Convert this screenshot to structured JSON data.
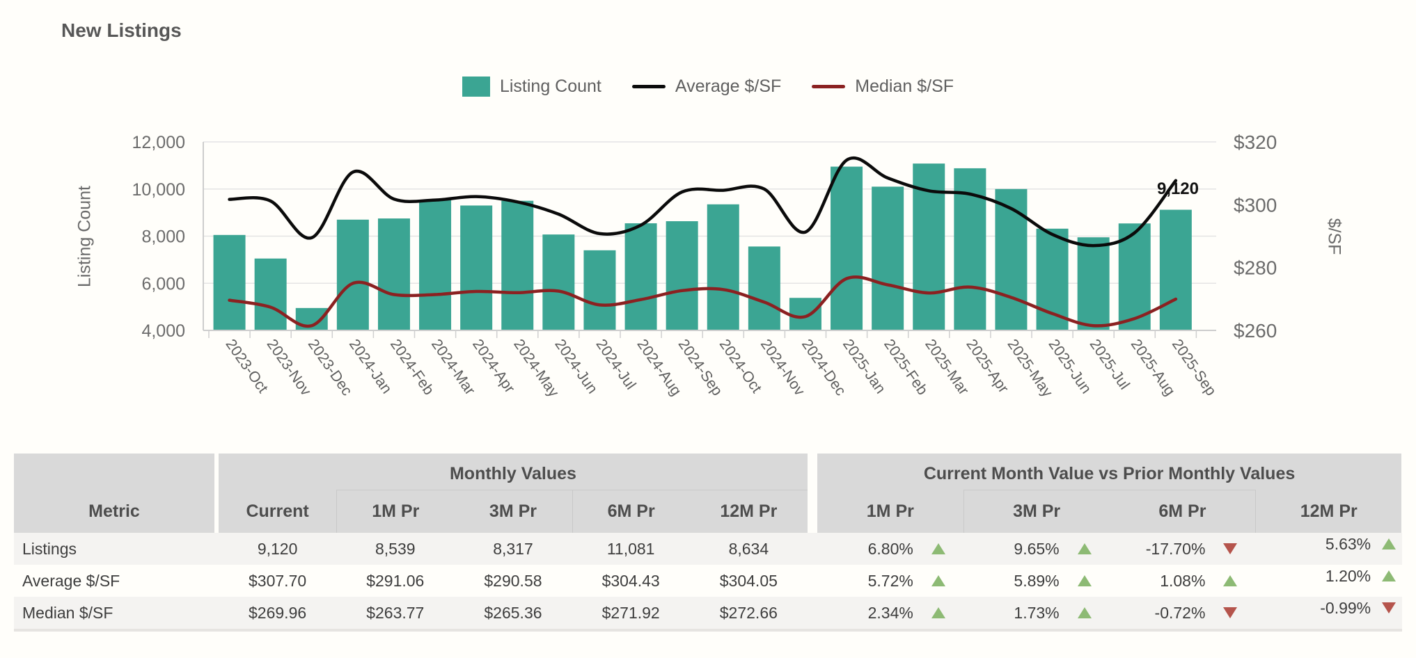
{
  "title": "New Listings",
  "legend": {
    "items": [
      {
        "label": "Listing Count",
        "type": "box",
        "color": "#3BA593"
      },
      {
        "label": "Average $/SF",
        "type": "line",
        "color": "#0b0b0b"
      },
      {
        "label": "Median $/SF",
        "type": "line",
        "color": "#8B2121"
      }
    ]
  },
  "chart_data": {
    "type": "combo",
    "title": "New Listings",
    "categories": [
      "2023-Oct",
      "2023-Nov",
      "2023-Dec",
      "2024-Jan",
      "2024-Feb",
      "2024-Mar",
      "2024-Apr",
      "2024-May",
      "2024-Jun",
      "2024-Jul",
      "2024-Aug",
      "2024-Sep",
      "2024-Oct",
      "2024-Nov",
      "2024-Dec",
      "2025-Jan",
      "2025-Feb",
      "2025-Mar",
      "2025-Apr",
      "2025-May",
      "2025-Jun",
      "2025-Jul",
      "2025-Aug",
      "2025-Sep"
    ],
    "series": [
      {
        "name": "Listing Count",
        "type": "bar",
        "axis": "left",
        "color": "#3BA593",
        "values": [
          8050,
          7050,
          4950,
          8700,
          8750,
          9550,
          9300,
          9500,
          8070,
          7400,
          8545,
          8634,
          9350,
          7560,
          5380,
          10950,
          10100,
          11081,
          10880,
          10000,
          8317,
          7950,
          8539,
          9120
        ]
      },
      {
        "name": "Average $/SF",
        "type": "line",
        "axis": "right",
        "color": "#0b0b0b",
        "values": [
          301.7,
          301.2,
          289.5,
          310.4,
          301.8,
          301.5,
          302.6,
          300.9,
          297.0,
          290.8,
          293.5,
          304.05,
          304.6,
          305.0,
          291.3,
          314.2,
          308.5,
          304.43,
          303.4,
          298.8,
          290.58,
          287.0,
          291.06,
          307.7
        ]
      },
      {
        "name": "Median $/SF",
        "type": "line",
        "axis": "right",
        "color": "#8B2121",
        "values": [
          269.6,
          267.4,
          261.5,
          275.0,
          271.4,
          271.4,
          272.4,
          272.0,
          272.5,
          268.1,
          269.8,
          272.66,
          273.0,
          269.0,
          264.4,
          276.5,
          274.5,
          271.92,
          273.8,
          270.5,
          265.36,
          261.5,
          263.77,
          269.96
        ]
      }
    ],
    "left_axis": {
      "title": "Listing Count",
      "min": 4000,
      "max": 12000,
      "tick_values": [
        12000,
        10000,
        8000,
        6000,
        4000
      ],
      "tick_labels": [
        "12,000",
        "10,000",
        "8,000",
        "6,000",
        "4,000"
      ]
    },
    "right_axis": {
      "title": "$/SF",
      "min": 260,
      "max": 320,
      "tick_values": [
        320,
        300,
        280,
        260
      ],
      "tick_labels": [
        "$320",
        "$300",
        "$280",
        "$260"
      ]
    },
    "data_label": {
      "text": "9,120",
      "series": "Listing Count",
      "category": "2025-Sep"
    },
    "grid": true,
    "legend_position": "top"
  },
  "table": {
    "metric_header": "Metric",
    "groups": [
      {
        "label": "Monthly Values",
        "columns": [
          "Current",
          "1M Pr",
          "3M Pr",
          "6M Pr",
          "12M Pr"
        ]
      },
      {
        "label": "Current Month Value vs Prior Monthly Values",
        "columns": [
          "1M Pr",
          "3M Pr",
          "6M Pr",
          "12M Pr"
        ]
      }
    ],
    "rows": [
      {
        "metric": "Listings",
        "monthly": [
          "9,120",
          "8,539",
          "8,317",
          "11,081",
          "8,634"
        ],
        "comparisons": [
          {
            "value": "6.80%",
            "direction": "up"
          },
          {
            "value": "9.65%",
            "direction": "up"
          },
          {
            "value": "-17.70%",
            "direction": "down"
          },
          {
            "value": "5.63%",
            "direction": "up"
          }
        ]
      },
      {
        "metric": "Average $/SF",
        "monthly": [
          "$307.70",
          "$291.06",
          "$290.58",
          "$304.43",
          "$304.05"
        ],
        "comparisons": [
          {
            "value": "5.72%",
            "direction": "up"
          },
          {
            "value": "5.89%",
            "direction": "up"
          },
          {
            "value": "1.08%",
            "direction": "up"
          },
          {
            "value": "1.20%",
            "direction": "up"
          }
        ]
      },
      {
        "metric": "Median $/SF",
        "monthly": [
          "$269.96",
          "$263.77",
          "$265.36",
          "$271.92",
          "$272.66"
        ],
        "comparisons": [
          {
            "value": "2.34%",
            "direction": "up"
          },
          {
            "value": "1.73%",
            "direction": "up"
          },
          {
            "value": "-0.72%",
            "direction": "down"
          },
          {
            "value": "-0.99%",
            "direction": "down"
          }
        ]
      }
    ],
    "colors": {
      "up": "#8dba74",
      "down": "#b5544c",
      "header_bg": "#d9d9d9",
      "stripe_bg": "#f4f3f1"
    }
  }
}
